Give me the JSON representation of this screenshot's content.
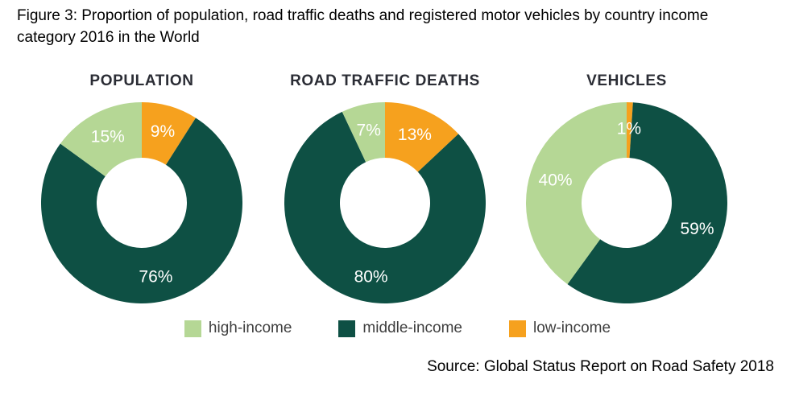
{
  "figure_title_line1": "Figure 3: Proportion of population, road traffic deaths and registered motor vehicles by country income",
  "figure_title_line2": "category 2016 in the World",
  "source": "Source: Global Status Report on Road Safety 2018",
  "colors": {
    "high_income": "#b5d795",
    "middle_income": "#0e5044",
    "low_income": "#f6a11e"
  },
  "legend": {
    "position": "bottom",
    "items": [
      "high-income",
      "middle-income",
      "low-income"
    ]
  },
  "chart_data": [
    {
      "type": "pie",
      "subtype": "donut",
      "title": "POPULATION",
      "start_angle_deg": 0,
      "direction": "clockwise",
      "inner_radius_ratio": 0.45,
      "slices": [
        {
          "label": "low-income",
          "value": 9,
          "display": "9%"
        },
        {
          "label": "middle-income",
          "value": 76,
          "display": "76%"
        },
        {
          "label": "high-income",
          "value": 15,
          "display": "15%"
        }
      ]
    },
    {
      "type": "pie",
      "subtype": "donut",
      "title": "ROAD TRAFFIC DEATHS",
      "start_angle_deg": 0,
      "direction": "clockwise",
      "inner_radius_ratio": 0.45,
      "slices": [
        {
          "label": "low-income",
          "value": 13,
          "display": "13%"
        },
        {
          "label": "middle-income",
          "value": 80,
          "display": "80%"
        },
        {
          "label": "high-income",
          "value": 7,
          "display": "7%"
        }
      ]
    },
    {
      "type": "pie",
      "subtype": "donut",
      "title": "VEHICLES",
      "start_angle_deg": 0,
      "direction": "clockwise",
      "inner_radius_ratio": 0.45,
      "slices": [
        {
          "label": "low-income",
          "value": 1,
          "display": "1%"
        },
        {
          "label": "middle-income",
          "value": 59,
          "display": "59%"
        },
        {
          "label": "high-income",
          "value": 40,
          "display": "40%"
        }
      ]
    }
  ]
}
